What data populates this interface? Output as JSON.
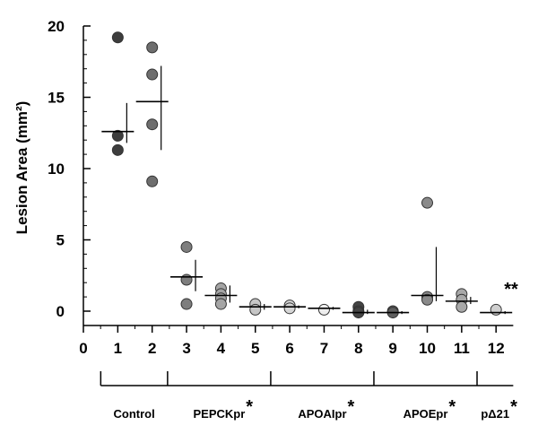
{
  "chart_data": {
    "type": "scatter",
    "ylabel": "Lesion Area (mm²)",
    "xlabel": "",
    "xlim": [
      0,
      12.5
    ],
    "ylim": [
      -1,
      20
    ],
    "x_ticks": [
      "0",
      "1",
      "2",
      "3",
      "4",
      "5",
      "6",
      "7",
      "8",
      "9",
      "10",
      "11",
      "12"
    ],
    "y_ticks": [
      "0",
      "5",
      "10",
      "15",
      "20"
    ],
    "grid": false,
    "groups": [
      {
        "label": "Control",
        "star": "",
        "from": 1,
        "to": 2
      },
      {
        "label": "PEPCKpr",
        "star": "*",
        "from": 3,
        "to": 5
      },
      {
        "label": "APOAIpr",
        "star": "*",
        "from": 6,
        "to": 8
      },
      {
        "label": "APOEpr",
        "star": "*",
        "from": 9,
        "to": 11
      },
      {
        "label": "pΔ21",
        "star": "*",
        "from": 12,
        "to": 12
      }
    ],
    "annotation": "**",
    "columns": [
      {
        "x": 1,
        "mean": 12.6,
        "upper": 14.6,
        "lower": 11.8,
        "color": "#3d3d3d",
        "points": [
          19.2,
          12.3,
          11.3
        ]
      },
      {
        "x": 2,
        "mean": 14.7,
        "upper": 17.2,
        "lower": 11.3,
        "color": "#6e6e6e",
        "points": [
          18.5,
          16.6,
          13.1,
          9.1
        ]
      },
      {
        "x": 3,
        "mean": 2.4,
        "upper": 3.6,
        "lower": 1.4,
        "color": "#7e7e7e",
        "points": [
          4.5,
          2.2,
          0.5
        ]
      },
      {
        "x": 4,
        "mean": 1.1,
        "upper": 1.8,
        "lower": 0.6,
        "color": "#a5a5a5",
        "points": [
          1.6,
          1.2,
          0.9,
          0.5
        ]
      },
      {
        "x": 5,
        "mean": 0.3,
        "upper": 0.5,
        "lower": 0.1,
        "color": "#c6c6c6",
        "points": [
          0.5,
          0.1
        ]
      },
      {
        "x": 6,
        "mean": 0.3,
        "upper": 0.4,
        "lower": 0.2,
        "color": "#d6d6d6",
        "points": [
          0.4,
          0.2
        ]
      },
      {
        "x": 7,
        "mean": 0.2,
        "upper": 0.3,
        "lower": 0.1,
        "color": "#eeeeee",
        "points": [
          0.1
        ]
      },
      {
        "x": 8,
        "mean": -0.1,
        "upper": 0.1,
        "lower": -0.2,
        "color": "#444444",
        "points": [
          0.3,
          0.0,
          -0.1
        ]
      },
      {
        "x": 9,
        "mean": -0.1,
        "upper": 0.0,
        "lower": -0.2,
        "color": "#5e5e5e",
        "points": [
          0.0,
          -0.1
        ]
      },
      {
        "x": 10,
        "mean": 1.1,
        "upper": 4.5,
        "lower": 0.7,
        "color": "#8a8a8a",
        "points": [
          7.6,
          1.0,
          0.8
        ]
      },
      {
        "x": 11,
        "mean": 0.7,
        "upper": 1.0,
        "lower": 0.5,
        "color": "#a8a8a8",
        "points": [
          1.2,
          0.8,
          0.3
        ]
      },
      {
        "x": 12,
        "mean": -0.1,
        "upper": 0.0,
        "lower": -0.2,
        "color": "#cfcfcf",
        "points": [
          0.1
        ]
      }
    ]
  }
}
